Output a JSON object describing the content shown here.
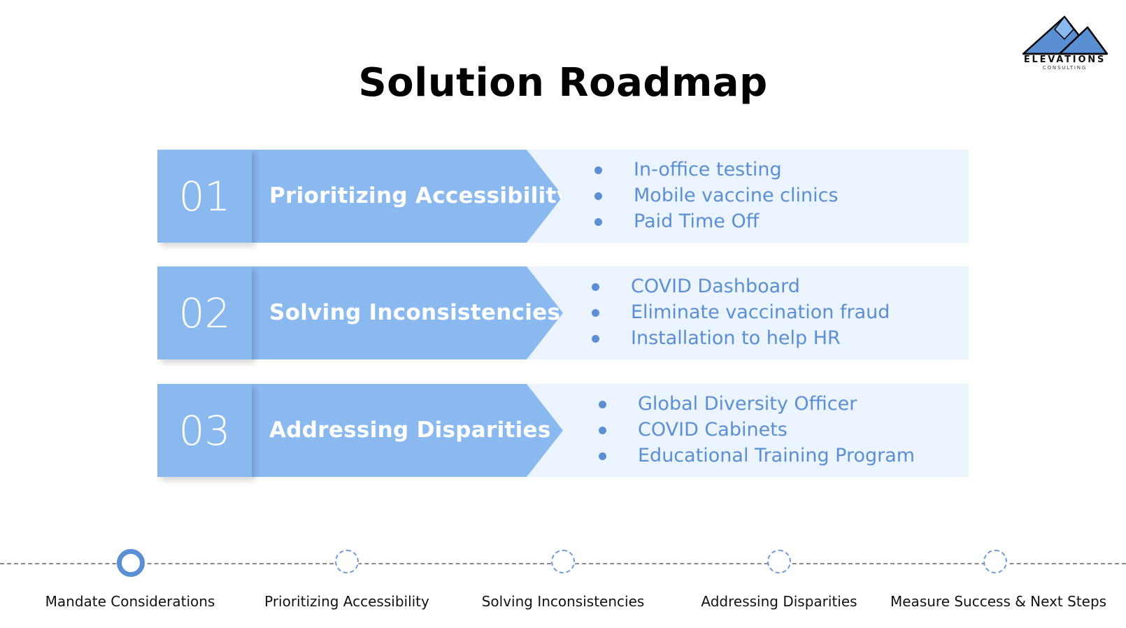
{
  "slide": {
    "title": "Solution Roadmap"
  },
  "logo": {
    "brand": "ELEVATIONS",
    "sub": "CONSULTING"
  },
  "roadmap": [
    {
      "number": "01",
      "heading": "Prioritizing Accessibility",
      "bullets": [
        "In-office testing",
        "Mobile vaccine clinics",
        "Paid Time Off"
      ]
    },
    {
      "number": "02",
      "heading": "Solving Inconsistencies",
      "bullets": [
        "COVID Dashboard",
        "Eliminate vaccination fraud",
        "Installation to help HR"
      ]
    },
    {
      "number": "03",
      "heading": "Addressing Disparities",
      "bullets": [
        "Global Diversity Officer",
        "COVID Cabinets",
        "Educational Training Program"
      ]
    }
  ],
  "timeline": {
    "active_index": 0,
    "steps": [
      "Mandate Considerations",
      "Prioritizing Accessibility",
      "Solving Inconsistencies",
      "Addressing Disparities",
      "Measure Success & Next Steps"
    ]
  },
  "colors": {
    "accent": "#8ab9ef",
    "panel": "#ebf3fc",
    "bullet_text": "#5b8fd4"
  }
}
